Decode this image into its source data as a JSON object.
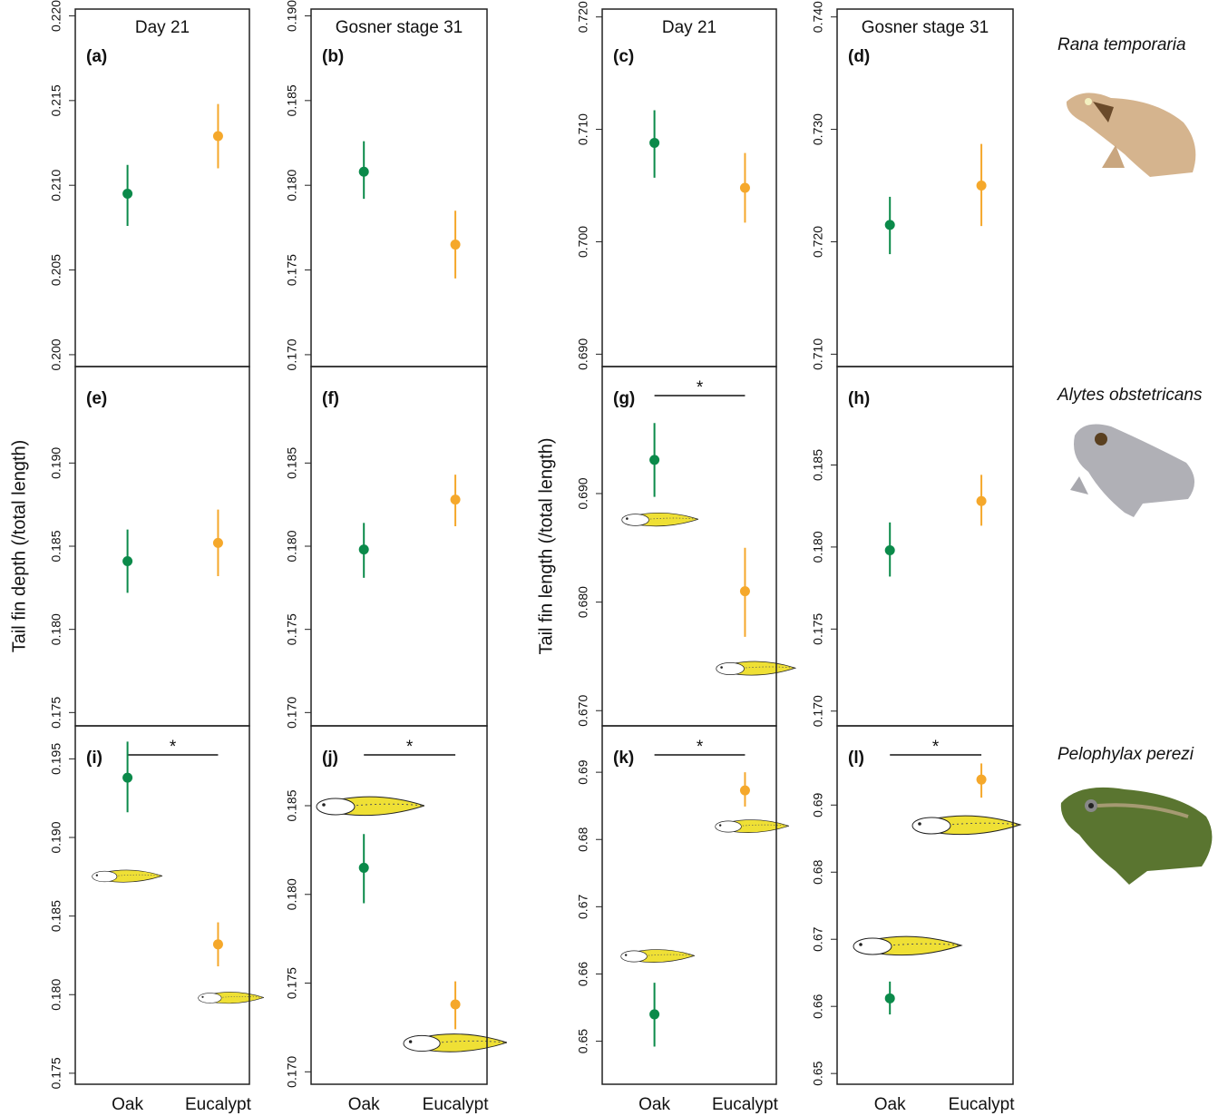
{
  "chart_data": [
    {
      "type": "errorbar",
      "panel": "(a)",
      "title": "Day 21",
      "colors": [
        "#0b8a4a",
        "#f5a82b"
      ],
      "values": [
        0.2095,
        0.2129
      ],
      "ci_low": [
        0.2076,
        0.211
      ],
      "ci_high": [
        0.2112,
        0.2148
      ],
      "ylim": [
        0.1993,
        0.2204
      ],
      "yticks": [
        {
          "value": 0.2,
          "label": "0.200"
        },
        0.205,
        {
          "value": 0.21,
          "label": "0.210"
        },
        0.215,
        {
          "value": 0.22,
          "label": "0.220"
        }
      ]
    },
    {
      "type": "errorbar",
      "panel": "(b)",
      "title": "Gosner stage 31",
      "colors": [
        "#0b8a4a",
        "#f5a82b"
      ],
      "values": [
        0.1808,
        0.1765
      ],
      "ci_low": [
        0.1792,
        0.1745
      ],
      "ci_high": [
        0.1826,
        0.1785
      ],
      "ylim": [
        0.1693,
        0.1904
      ],
      "yticks": [
        {
          "value": 0.17,
          "label": "0.170"
        },
        0.175,
        {
          "value": 0.18,
          "label": "0.180"
        },
        0.185,
        {
          "value": 0.19,
          "label": "0.190"
        }
      ]
    },
    {
      "type": "errorbar",
      "panel": "(c)",
      "title": "Day 21",
      "colors": [
        "#0b8a4a",
        "#f5a82b"
      ],
      "values": [
        0.7088,
        0.7048
      ],
      "ci_low": [
        0.7057,
        0.7017
      ],
      "ci_high": [
        0.7117,
        0.7079
      ],
      "ylim": [
        0.6889,
        0.7207
      ],
      "yticks": [
        {
          "value": 0.69,
          "label": "0.690"
        },
        {
          "value": 0.7,
          "label": "0.700"
        },
        {
          "value": 0.71,
          "label": "0.710"
        },
        {
          "value": 0.72,
          "label": "0.720"
        }
      ]
    },
    {
      "type": "errorbar",
      "panel": "(d)",
      "title": "Gosner stage 31",
      "species": "Rana temporaria",
      "colors": [
        "#0b8a4a",
        "#f5a82b"
      ],
      "values": [
        0.7215,
        0.725
      ],
      "ci_low": [
        0.7189,
        0.7214
      ],
      "ci_high": [
        0.724,
        0.7287
      ],
      "ylim": [
        0.7089,
        0.7407
      ],
      "yticks": [
        {
          "value": 0.71,
          "label": "0.710"
        },
        {
          "value": 0.72,
          "label": "0.720"
        },
        {
          "value": 0.73,
          "label": "0.730"
        },
        {
          "value": 0.74,
          "label": "0.740"
        }
      ]
    },
    {
      "type": "errorbar",
      "panel": "(e)",
      "ylabel": "Tail fin depth (/total length)",
      "colors": [
        "#0b8a4a",
        "#f5a82b"
      ],
      "values": [
        0.1841,
        0.1852
      ],
      "ci_low": [
        0.1822,
        0.1832
      ],
      "ci_high": [
        0.186,
        0.1872
      ],
      "ylim": [
        0.1742,
        0.1958
      ],
      "yticks": [
        0.175,
        {
          "value": 0.18,
          "label": "0.180"
        },
        0.185,
        {
          "value": 0.19,
          "label": "0.190"
        }
      ]
    },
    {
      "type": "errorbar",
      "panel": "(f)",
      "colors": [
        "#0b8a4a",
        "#f5a82b"
      ],
      "values": [
        0.1798,
        0.1828
      ],
      "ci_low": [
        0.1781,
        0.1812
      ],
      "ci_high": [
        0.1814,
        0.1843
      ],
      "ylim": [
        0.1692,
        0.1908
      ],
      "yticks": [
        {
          "value": 0.17,
          "label": "0.170"
        },
        0.175,
        {
          "value": 0.18,
          "label": "0.180"
        },
        0.185
      ]
    },
    {
      "type": "errorbar",
      "panel": "(g)",
      "ylabel": "Tail fin length (/total length)",
      "significance": "*",
      "colors": [
        "#0b8a4a",
        "#f5a82b"
      ],
      "values": [
        0.6931,
        0.681
      ],
      "ci_low": [
        0.6897,
        0.6768
      ],
      "ci_high": [
        0.6965,
        0.685
      ],
      "ylim": [
        0.6686,
        0.7017
      ],
      "yticks": [
        {
          "value": 0.67,
          "label": "0.670"
        },
        {
          "value": 0.68,
          "label": "0.680"
        },
        {
          "value": 0.69,
          "label": "0.690"
        }
      ]
    },
    {
      "type": "errorbar",
      "panel": "(h)",
      "species": "Alytes obstetricans",
      "colors": [
        "#0b8a4a",
        "#f5a82b"
      ],
      "values": [
        0.1798,
        0.1828
      ],
      "ci_low": [
        0.1782,
        0.1813
      ],
      "ci_high": [
        0.1815,
        0.1844
      ],
      "ylim": [
        0.1691,
        0.191
      ],
      "yticks": [
        {
          "value": 0.17,
          "label": "0.170"
        },
        0.175,
        {
          "value": 0.18,
          "label": "0.180"
        },
        0.185
      ]
    },
    {
      "type": "errorbar",
      "panel": "(i)",
      "significance": "*",
      "categories": [
        "Oak",
        "Eucalypt"
      ],
      "colors": [
        "#0b8a4a",
        "#f5a82b"
      ],
      "values": [
        0.1938,
        0.1832
      ],
      "ci_low": [
        0.1916,
        0.1818
      ],
      "ci_high": [
        0.1961,
        0.1846
      ],
      "ylim": [
        0.1743,
        0.1971
      ],
      "yticks": [
        0.175,
        {
          "value": 0.18,
          "label": "0.180"
        },
        0.185,
        {
          "value": 0.19,
          "label": "0.190"
        },
        0.195
      ]
    },
    {
      "type": "errorbar",
      "panel": "(j)",
      "significance": "*",
      "categories": [
        "Oak",
        "Eucalypt"
      ],
      "colors": [
        "#0b8a4a",
        "#f5a82b"
      ],
      "values": [
        0.1815,
        0.1738
      ],
      "ci_low": [
        0.1795,
        0.1724
      ],
      "ci_high": [
        0.1834,
        0.1751
      ],
      "ylim": [
        0.1693,
        0.1895
      ],
      "yticks": [
        {
          "value": 0.17,
          "label": "0.170"
        },
        0.175,
        {
          "value": 0.18,
          "label": "0.180"
        },
        0.185
      ]
    },
    {
      "type": "errorbar",
      "panel": "(k)",
      "significance": "*",
      "categories": [
        "Oak",
        "Eucalypt"
      ],
      "colors": [
        "#0b8a4a",
        "#f5a82b"
      ],
      "values": [
        0.654,
        0.6873
      ],
      "ci_low": [
        0.6492,
        0.6849
      ],
      "ci_high": [
        0.6587,
        0.69
      ],
      "ylim": [
        0.6436,
        0.6969
      ],
      "yticks": [
        0.65,
        0.66,
        0.67,
        0.68,
        0.69
      ]
    },
    {
      "type": "errorbar",
      "panel": "(l)",
      "significance": "*",
      "species": "Pelophylax perezi",
      "categories": [
        "Oak",
        "Eucalypt"
      ],
      "colors": [
        "#0b8a4a",
        "#f5a82b"
      ],
      "values": [
        0.6612,
        0.6938
      ],
      "ci_low": [
        0.6588,
        0.6911
      ],
      "ci_high": [
        0.6637,
        0.6962
      ],
      "ylim": [
        0.6484,
        0.7018
      ],
      "yticks": [
        0.65,
        0.66,
        0.67,
        0.68,
        0.69
      ]
    }
  ]
}
